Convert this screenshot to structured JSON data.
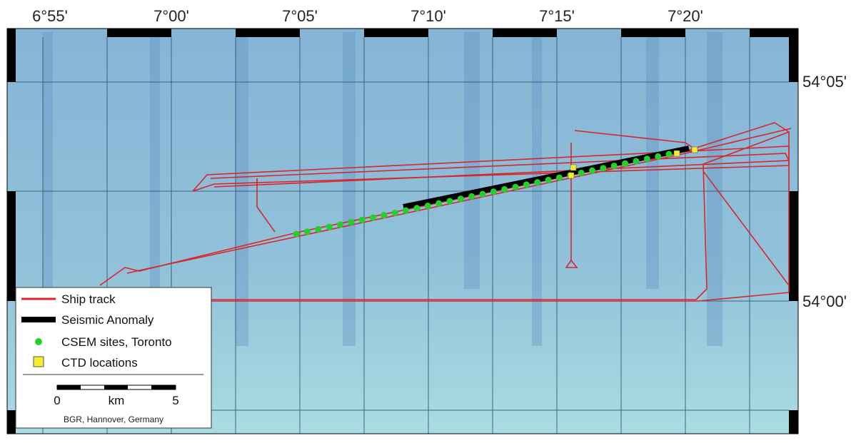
{
  "map": {
    "longitude_labels": [
      "6°55'",
      "7°00'",
      "7°05'",
      "7°10'",
      "7°15'",
      "7°20'"
    ],
    "latitude_labels": [
      "54°05'",
      "54°00'"
    ],
    "legend": [
      "Ship track",
      "Seismic Anomaly",
      "CSEM sites, Toronto",
      "CTD locations"
    ],
    "scale": {
      "start": "0",
      "unit": "km",
      "end": "5"
    },
    "credit": "BGR, Hannover, Germany"
  }
}
